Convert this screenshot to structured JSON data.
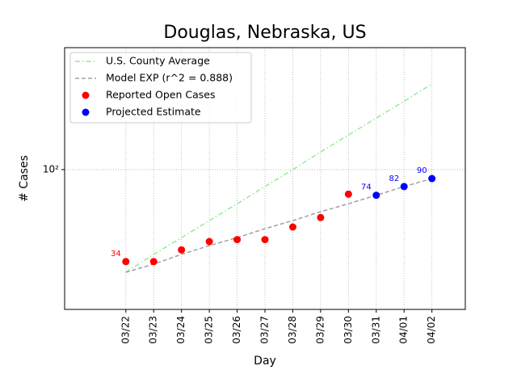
{
  "chart_data": {
    "type": "line",
    "title": "Douglas, Nebraska, US",
    "x_label": "Day",
    "y_label": "# Cases",
    "categories": [
      "03/22",
      "03/23",
      "03/24",
      "03/25",
      "03/26",
      "03/27",
      "03/28",
      "03/29",
      "03/30",
      "03/31",
      "04/01",
      "04/02"
    ],
    "y_log": true,
    "ylim": [
      19.4,
      418
    ],
    "yticks": [
      {
        "value": 100,
        "label": "10²"
      }
    ],
    "grid": true,
    "legend": "upper left",
    "series": [
      {
        "name": "U.S. County Average",
        "color": "#90ee90",
        "style": "dashdot",
        "values": [
          30,
          37,
          45,
          55,
          67,
          82,
          100,
          123,
          150,
          183,
          223,
          273
        ]
      },
      {
        "name": "Model EXP (r^2 = 0.888)",
        "color": "#a0a0a0",
        "style": "dashed",
        "values": [
          30,
          33,
          37,
          41,
          45,
          50,
          55,
          61,
          67,
          74,
          82,
          90
        ]
      },
      {
        "name": "Reported Open Cases",
        "color": "#ff0000",
        "style": "markers",
        "label_points": [
          0
        ],
        "values": [
          34,
          34,
          39,
          43,
          44,
          44,
          51,
          57,
          75,
          null,
          null,
          null
        ]
      },
      {
        "name": "Projected Estimate",
        "color": "#0000ff",
        "style": "markers",
        "label_points": [
          9,
          10,
          11
        ],
        "values": [
          null,
          null,
          null,
          null,
          null,
          null,
          null,
          null,
          null,
          74,
          82,
          90
        ]
      }
    ]
  }
}
